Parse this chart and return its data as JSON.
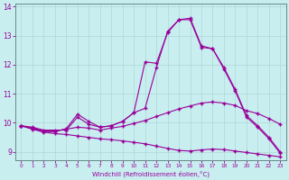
{
  "xlabel": "Windchill (Refroidissement éolien,°C)",
  "ylabel": "",
  "background_color": "#c8eef0",
  "line_color": "#990099",
  "grid_color": "#b0d8d8",
  "xlim": [
    -0.5,
    23.5
  ],
  "ylim": [
    8.7,
    14.1
  ],
  "xticks": [
    0,
    1,
    2,
    3,
    4,
    5,
    6,
    7,
    8,
    9,
    10,
    11,
    12,
    13,
    14,
    15,
    16,
    17,
    18,
    19,
    20,
    21,
    22,
    23
  ],
  "yticks": [
    9,
    10,
    11,
    12,
    13,
    14
  ],
  "curve1_x": [
    0,
    1,
    2,
    3,
    4,
    5,
    6,
    7,
    8,
    9,
    10,
    11,
    12,
    13,
    14,
    15,
    16,
    17,
    18,
    19,
    20,
    21,
    22,
    23
  ],
  "curve1_y": [
    9.9,
    9.85,
    9.75,
    9.75,
    9.75,
    10.2,
    9.95,
    9.85,
    9.9,
    10.05,
    10.35,
    12.1,
    12.05,
    13.1,
    13.55,
    13.6,
    12.65,
    12.55,
    11.85,
    11.1,
    10.2,
    9.85,
    9.45,
    8.95
  ],
  "curve2_x": [
    0,
    1,
    2,
    3,
    4,
    5,
    6,
    7,
    8,
    9,
    10,
    11,
    12,
    13,
    14,
    15,
    16,
    17,
    18,
    19,
    20,
    21,
    22,
    23
  ],
  "curve2_y": [
    9.9,
    9.8,
    9.7,
    9.7,
    9.8,
    10.3,
    10.05,
    9.85,
    9.9,
    10.05,
    10.35,
    10.5,
    11.9,
    13.15,
    13.55,
    13.55,
    12.6,
    12.55,
    11.9,
    11.15,
    10.25,
    9.9,
    9.5,
    9.0
  ],
  "curve3_x": [
    0,
    1,
    2,
    3,
    4,
    5,
    6,
    7,
    8,
    9,
    10,
    11,
    12,
    13,
    14,
    15,
    16,
    17,
    18,
    19,
    20,
    21,
    22,
    23
  ],
  "curve3_y": [
    9.9,
    9.82,
    9.72,
    9.72,
    9.78,
    9.85,
    9.82,
    9.75,
    9.82,
    9.88,
    9.98,
    10.08,
    10.22,
    10.35,
    10.48,
    10.58,
    10.68,
    10.72,
    10.68,
    10.6,
    10.42,
    10.32,
    10.15,
    9.95
  ],
  "curve4_x": [
    0,
    1,
    2,
    3,
    4,
    5,
    6,
    7,
    8,
    9,
    10,
    11,
    12,
    13,
    14,
    15,
    16,
    17,
    18,
    19,
    20,
    21,
    22,
    23
  ],
  "curve4_y": [
    9.9,
    9.78,
    9.68,
    9.63,
    9.6,
    9.55,
    9.5,
    9.45,
    9.42,
    9.38,
    9.33,
    9.28,
    9.2,
    9.12,
    9.05,
    9.03,
    9.07,
    9.1,
    9.08,
    9.03,
    8.98,
    8.93,
    8.88,
    8.83
  ]
}
